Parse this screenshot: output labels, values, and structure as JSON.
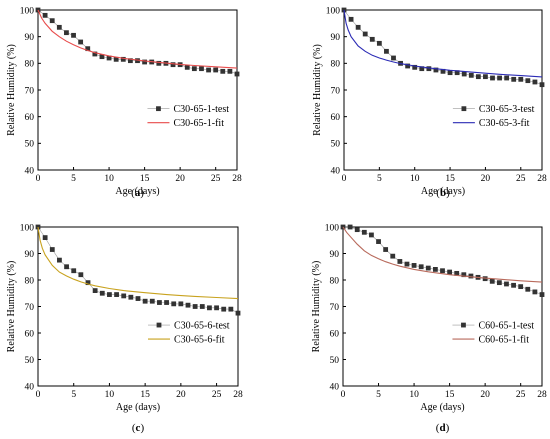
{
  "chart_data": [
    {
      "type": "scatter",
      "panel_label": "a",
      "xlabel": "Age (days)",
      "ylabel": "Relative Humidity (%)",
      "xlim": [
        0,
        28
      ],
      "ylim": [
        40,
        100
      ],
      "xticks": [
        0,
        5,
        10,
        15,
        20,
        25,
        28
      ],
      "yticks": [
        40,
        50,
        60,
        70,
        80,
        90,
        100
      ],
      "legend_position": "center-right",
      "series": [
        {
          "name": "C30-65-1-test",
          "kind": "scatter-line",
          "color": "#333333",
          "x": [
            0,
            1,
            2,
            3,
            4,
            5,
            6,
            7,
            8,
            9,
            10,
            11,
            12,
            13,
            14,
            15,
            16,
            17,
            18,
            19,
            20,
            21,
            22,
            23,
            24,
            25,
            26,
            27,
            28
          ],
          "y": [
            100,
            98,
            96,
            93.5,
            91.5,
            90.5,
            88,
            85.5,
            83.5,
            82.5,
            82,
            81.5,
            81.5,
            81,
            81,
            80.5,
            80.5,
            80,
            80,
            79.5,
            79.5,
            78.5,
            78,
            78,
            77.5,
            77.5,
            77,
            77,
            76
          ]
        },
        {
          "name": "C30-65-1-fit",
          "kind": "line",
          "color": "#e84c4c",
          "x": [
            0,
            0.5,
            1,
            2,
            3,
            4,
            5,
            6,
            7,
            8,
            10,
            12,
            15,
            18,
            20,
            22,
            25,
            28
          ],
          "y": [
            100,
            97,
            95,
            92,
            90,
            88.3,
            87,
            85.8,
            84.8,
            84,
            82.8,
            81.9,
            80.9,
            80.1,
            79.6,
            79.2,
            78.7,
            78.2
          ]
        }
      ]
    },
    {
      "type": "scatter",
      "panel_label": "b",
      "xlabel": "Age (days)",
      "ylabel": "Relative Humidity (%)",
      "xlim": [
        0,
        28
      ],
      "ylim": [
        40,
        100
      ],
      "xticks": [
        0,
        5,
        10,
        15,
        20,
        25,
        28
      ],
      "yticks": [
        40,
        50,
        60,
        70,
        80,
        90,
        100
      ],
      "legend_position": "center-right",
      "series": [
        {
          "name": "C30-65-3-test",
          "kind": "scatter-line",
          "color": "#333333",
          "x": [
            0,
            1,
            2,
            3,
            4,
            5,
            6,
            7,
            8,
            9,
            10,
            11,
            12,
            13,
            14,
            15,
            16,
            17,
            18,
            19,
            20,
            21,
            22,
            23,
            24,
            25,
            26,
            27,
            28
          ],
          "y": [
            100,
            96.5,
            93.5,
            91,
            89,
            87.5,
            84.5,
            82,
            80,
            79,
            78.5,
            78,
            78,
            77.5,
            77,
            76.5,
            76.5,
            76,
            75.5,
            75,
            75,
            74.5,
            74.5,
            74.5,
            74,
            74,
            73.5,
            73,
            72
          ]
        },
        {
          "name": "C30-65-3-fit",
          "kind": "line",
          "color": "#2b2bb5",
          "x": [
            0,
            0.3,
            0.6,
            1,
            2,
            3,
            4,
            5,
            6,
            7,
            8,
            10,
            12,
            15,
            18,
            20,
            22,
            25,
            28
          ],
          "y": [
            100,
            95,
            92.5,
            90,
            86.5,
            84.5,
            83,
            82,
            81.2,
            80.5,
            79.9,
            79,
            78.3,
            77.4,
            76.7,
            76.3,
            75.9,
            75.4,
            74.9
          ]
        }
      ]
    },
    {
      "type": "scatter",
      "panel_label": "c",
      "xlabel": "Age (days)",
      "ylabel": "Relative Humidity (%)",
      "xlim": [
        0,
        28
      ],
      "ylim": [
        40,
        100
      ],
      "xticks": [
        0,
        5,
        10,
        15,
        20,
        25,
        28
      ],
      "yticks": [
        40,
        50,
        60,
        70,
        80,
        90,
        100
      ],
      "legend_position": "center-right",
      "series": [
        {
          "name": "C30-65-6-test",
          "kind": "scatter-line",
          "color": "#333333",
          "x": [
            0,
            1,
            2,
            3,
            4,
            5,
            6,
            7,
            8,
            9,
            10,
            11,
            12,
            13,
            14,
            15,
            16,
            17,
            18,
            19,
            20,
            21,
            22,
            23,
            24,
            25,
            26,
            27,
            28
          ],
          "y": [
            100,
            96,
            91.5,
            87.5,
            85,
            83.5,
            82,
            79,
            76,
            75,
            74.5,
            74.5,
            74,
            73.5,
            73,
            72,
            72,
            71.5,
            71.5,
            71,
            71,
            70.5,
            70,
            70,
            69.5,
            69.5,
            69,
            69,
            67.5
          ]
        },
        {
          "name": "C30-65-6-fit",
          "kind": "line",
          "color": "#c8a21e",
          "x": [
            0,
            0.3,
            0.6,
            1,
            2,
            3,
            4,
            5,
            6,
            7,
            8,
            10,
            12,
            15,
            18,
            20,
            22,
            25,
            28
          ],
          "y": [
            100,
            95,
            92,
            89.5,
            85.5,
            83,
            81.5,
            80.3,
            79.3,
            78.5,
            77.8,
            76.8,
            76,
            75.2,
            74.5,
            74.1,
            73.8,
            73.4,
            73
          ]
        }
      ]
    },
    {
      "type": "scatter",
      "panel_label": "d",
      "xlabel": "Age (days)",
      "ylabel": "Relative Humidity (%)",
      "xlim": [
        0,
        28
      ],
      "ylim": [
        40,
        100
      ],
      "xticks": [
        0,
        5,
        10,
        15,
        20,
        25,
        28
      ],
      "yticks": [
        40,
        50,
        60,
        70,
        80,
        90,
        100
      ],
      "legend_position": "center-right",
      "series": [
        {
          "name": "C60-65-1-test",
          "kind": "scatter-line",
          "color": "#333333",
          "x": [
            0,
            1,
            2,
            3,
            4,
            5,
            6,
            7,
            8,
            9,
            10,
            11,
            12,
            13,
            14,
            15,
            16,
            17,
            18,
            19,
            20,
            21,
            22,
            23,
            24,
            25,
            26,
            27,
            28
          ],
          "y": [
            100,
            100,
            99,
            98,
            97,
            94.5,
            91.5,
            89,
            87,
            86,
            85.5,
            85,
            84.5,
            84,
            83.5,
            83,
            82.5,
            82,
            81.5,
            81,
            80.5,
            79.5,
            79,
            78.5,
            78,
            77.5,
            76.5,
            75.5,
            74.5
          ]
        },
        {
          "name": "C60-65-1-fit",
          "kind": "line",
          "color": "#b86a5c",
          "x": [
            0,
            0.5,
            1,
            2,
            3,
            4,
            5,
            6,
            7,
            8,
            10,
            12,
            15,
            18,
            20,
            22,
            25,
            28
          ],
          "y": [
            100,
            98,
            96.5,
            93.5,
            91,
            89.3,
            88,
            86.9,
            86,
            85.2,
            84,
            83.1,
            82,
            81.2,
            80.7,
            80.3,
            79.7,
            79.2
          ]
        }
      ]
    }
  ]
}
